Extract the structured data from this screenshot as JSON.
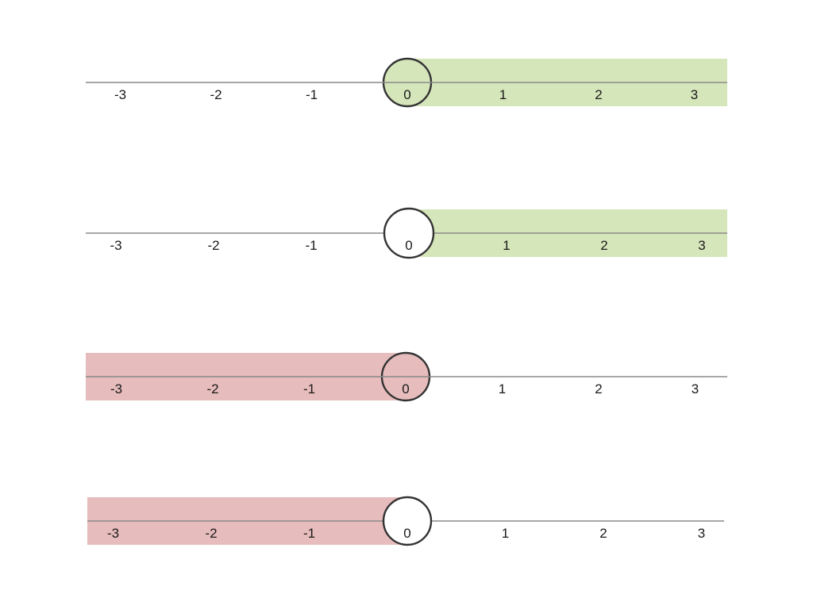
{
  "colors": {
    "background": "#ffffff",
    "axis": "#8a8a8a",
    "label": "#1a1a1a",
    "positive_region": "#d6e6bb",
    "negative_region": "#e7bcbc",
    "circle_stroke": "#333333"
  },
  "number_lines": [
    {
      "ticks": [
        "-3",
        "-2",
        "-1",
        "0",
        "1",
        "2",
        "3"
      ],
      "shaded_side": "right",
      "shade_color": "positive_region",
      "circle": "shaded",
      "circle_at": "0"
    },
    {
      "ticks": [
        "-3",
        "-2",
        "-1",
        "0",
        "1",
        "2",
        "3"
      ],
      "shaded_side": "right",
      "shade_color": "positive_region",
      "circle": "open",
      "circle_at": "0"
    },
    {
      "ticks": [
        "-3",
        "-2",
        "-1",
        "0",
        "1",
        "2",
        "3"
      ],
      "shaded_side": "left",
      "shade_color": "negative_region",
      "circle": "shaded",
      "circle_at": "0"
    },
    {
      "ticks": [
        "-3",
        "-2",
        "-1",
        "0",
        "1",
        "2",
        "3"
      ],
      "shaded_side": "left",
      "shade_color": "negative_region",
      "circle": "open",
      "circle_at": "0"
    }
  ]
}
